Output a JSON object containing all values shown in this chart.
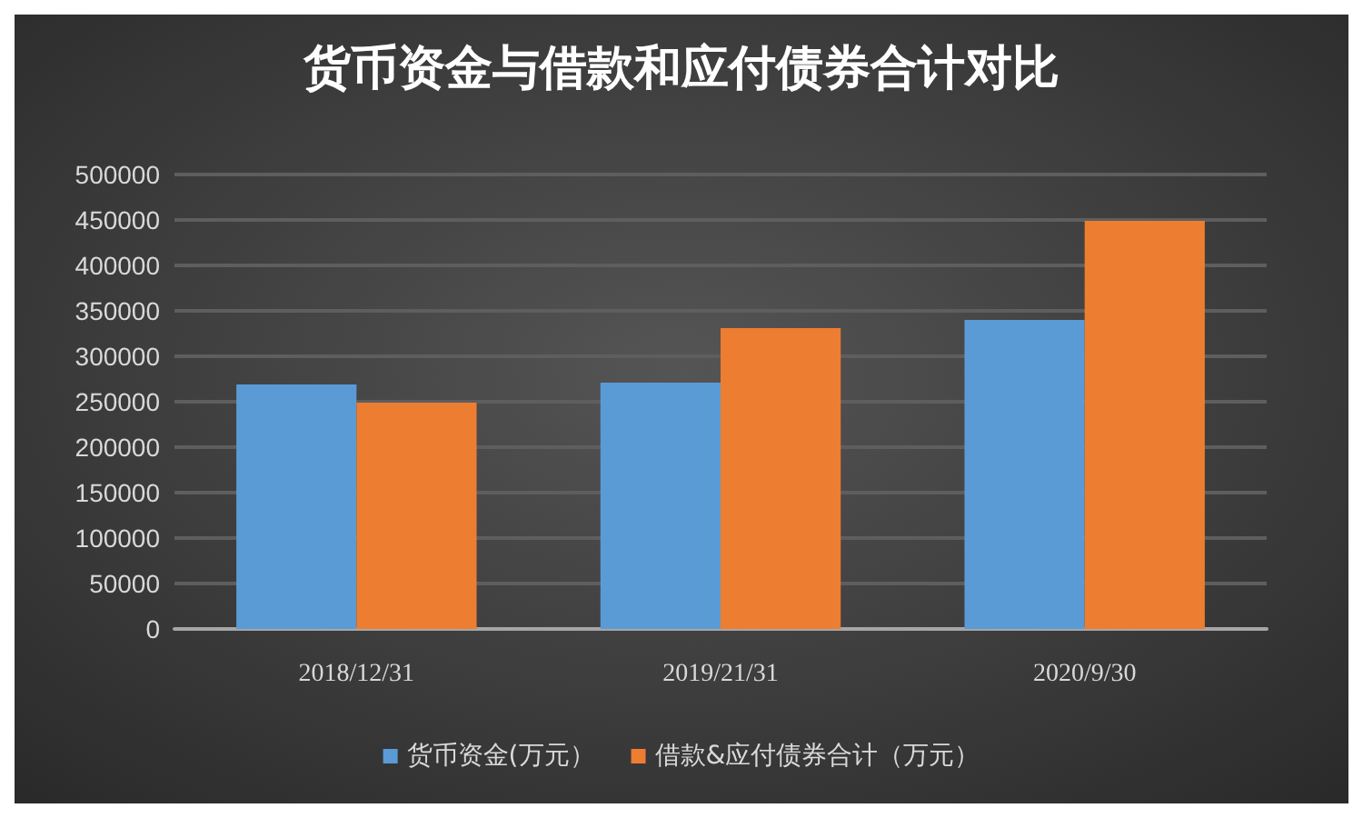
{
  "chart_data": {
    "type": "bar",
    "title": "货币资金与借款和应付债券合计对比",
    "categories": [
      "2018/12/31",
      "2019/21/31",
      "2020/9/30"
    ],
    "series": [
      {
        "name": "货币资金(万元）",
        "color": "#5b9bd5",
        "values": [
          269000,
          271000,
          340000
        ]
      },
      {
        "name": "借款&应付债券合计（万元）",
        "color": "#ed7d31",
        "values": [
          249000,
          331000,
          449000
        ]
      }
    ],
    "ylim": [
      0,
      500000
    ],
    "yticks": [
      0,
      50000,
      100000,
      150000,
      200000,
      250000,
      300000,
      350000,
      400000,
      450000,
      500000
    ],
    "grid": "y",
    "legend": "bottom"
  }
}
